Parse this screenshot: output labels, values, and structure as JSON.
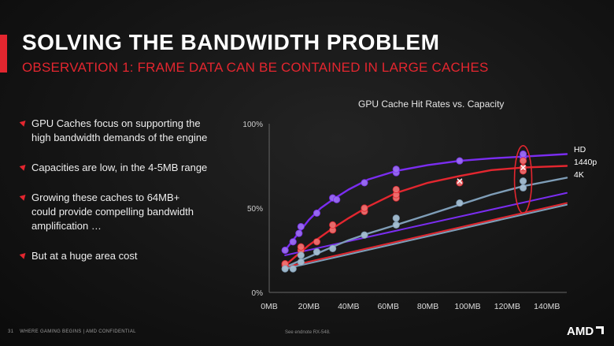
{
  "slide": {
    "title": "SOLVING THE BANDWIDTH PROBLEM",
    "subtitle": "OBSERVATION 1: FRAME DATA CAN BE CONTAINED IN LARGE CACHES"
  },
  "bullets": [
    {
      "lines": [
        "GPU Caches focus on supporting the",
        "high bandwidth demands of the engine"
      ]
    },
    {
      "lines": [
        "Capacities are low, in the 4-5MB range"
      ]
    },
    {
      "lines": [
        "Growing these caches to 64MB+",
        "could provide compelling bandwidth",
        "amplification …"
      ]
    },
    {
      "lines": [
        "But at a huge area cost"
      ]
    }
  ],
  "footer": {
    "page_number": "31",
    "left_text": "WHERE GAMING BEGINS  |  AMD CONFIDENTIAL",
    "center_text": "See endnote RX-548.",
    "logo_text": "AMD"
  },
  "chart_data": {
    "type": "line",
    "title": "GPU Cache Hit Rates vs. Capacity",
    "xlabel": "",
    "ylabel": "",
    "x_ticks": [
      "0MB",
      "20MB",
      "40MB",
      "60MB",
      "80MB",
      "100MB",
      "120MB",
      "140MB"
    ],
    "y_ticks": [
      "0%",
      "50%",
      "100%"
    ],
    "xlim": [
      0,
      150
    ],
    "ylim": [
      0,
      100
    ],
    "legend_placement": "right",
    "highlight": {
      "x": 128,
      "y_min": 47,
      "y_max": 87,
      "color": "#e3262f"
    },
    "series": [
      {
        "name": "HD",
        "color": "#7a2df0",
        "point_color": "#9a6cf5",
        "curve": [
          [
            8,
            25
          ],
          [
            12,
            31
          ],
          [
            16,
            37
          ],
          [
            20,
            43
          ],
          [
            26,
            50
          ],
          [
            32,
            55
          ],
          [
            40,
            61
          ],
          [
            50,
            67
          ],
          [
            64,
            72
          ],
          [
            80,
            75.5
          ],
          [
            96,
            78
          ],
          [
            112,
            79.5
          ],
          [
            128,
            80.5
          ],
          [
            150,
            82
          ]
        ],
        "points": [
          [
            8,
            25
          ],
          [
            12,
            30
          ],
          [
            15,
            35
          ],
          [
            16,
            39
          ],
          [
            24,
            47
          ],
          [
            32,
            56
          ],
          [
            34,
            55
          ],
          [
            48,
            65
          ],
          [
            64,
            71
          ],
          [
            64,
            73
          ],
          [
            96,
            78
          ],
          [
            128,
            80
          ],
          [
            128,
            82
          ]
        ],
        "trend": [
          [
            8,
            22
          ],
          [
            150,
            59
          ]
        ]
      },
      {
        "name": "1440p",
        "color": "#e3262f",
        "point_color": "#f06f6f",
        "curve": [
          [
            8,
            16
          ],
          [
            12,
            20
          ],
          [
            16,
            24
          ],
          [
            20,
            28
          ],
          [
            26,
            33
          ],
          [
            32,
            38
          ],
          [
            40,
            44
          ],
          [
            50,
            51
          ],
          [
            64,
            59
          ],
          [
            80,
            65
          ],
          [
            96,
            69
          ],
          [
            112,
            72.5
          ],
          [
            128,
            74
          ],
          [
            150,
            75
          ]
        ],
        "points": [
          [
            8,
            16
          ],
          [
            8,
            17
          ],
          [
            16,
            25
          ],
          [
            16,
            27
          ],
          [
            24,
            30
          ],
          [
            32,
            37
          ],
          [
            32,
            40
          ],
          [
            48,
            48
          ],
          [
            48,
            50
          ],
          [
            64,
            56
          ],
          [
            64,
            58
          ],
          [
            64,
            61
          ],
          [
            96,
            65
          ],
          [
            128,
            72
          ],
          [
            128,
            74
          ],
          [
            128,
            78
          ]
        ],
        "marker_points": [
          [
            96,
            66
          ],
          [
            128,
            74
          ]
        ],
        "trend": [
          [
            8,
            15
          ],
          [
            150,
            53
          ]
        ]
      },
      {
        "name": "4K",
        "color": "#7f9eb8",
        "point_color": "#a5bfd3",
        "curve": [
          [
            8,
            15
          ],
          [
            12,
            17
          ],
          [
            16,
            19
          ],
          [
            20,
            21
          ],
          [
            26,
            24
          ],
          [
            32,
            27
          ],
          [
            40,
            31
          ],
          [
            50,
            35
          ],
          [
            64,
            40
          ],
          [
            80,
            46
          ],
          [
            96,
            52
          ],
          [
            112,
            58
          ],
          [
            128,
            63
          ],
          [
            150,
            68
          ]
        ],
        "points": [
          [
            8,
            14
          ],
          [
            12,
            14
          ],
          [
            16,
            18
          ],
          [
            16,
            22
          ],
          [
            24,
            24
          ],
          [
            32,
            26
          ],
          [
            48,
            34
          ],
          [
            64,
            40
          ],
          [
            64,
            44
          ],
          [
            96,
            53
          ],
          [
            128,
            62
          ],
          [
            128,
            66
          ]
        ],
        "trend": [
          [
            8,
            14
          ],
          [
            150,
            52
          ]
        ]
      }
    ]
  }
}
